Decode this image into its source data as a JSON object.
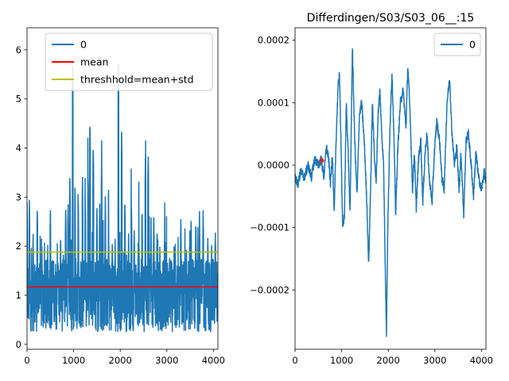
{
  "colors": {
    "series": "#1f77b4",
    "mean": "#ff0000",
    "threshold": "#bfbf00",
    "marker": "#d62728"
  },
  "chart_data": [
    {
      "type": "line",
      "title": "",
      "xlabel": "",
      "ylabel": "",
      "xlim": [
        0,
        4096
      ],
      "ylim": [
        -0.1,
        6.45
      ],
      "xticks": [
        0,
        1000,
        2000,
        3000,
        4000
      ],
      "yticks": [
        0,
        1,
        2,
        3,
        4,
        5,
        6
      ],
      "legend": {
        "placement": "upper-right",
        "entries": [
          "0",
          "mean",
          "threshhold=mean+std"
        ]
      },
      "series": [
        {
          "name": "0",
          "style": "noisy-line",
          "baseline": 1.0,
          "noise": 0.75,
          "peaks": [
            [
              0,
              2.95
            ],
            [
              50,
              3.05
            ],
            [
              130,
              2.4
            ],
            [
              220,
              2.95
            ],
            [
              320,
              2.1
            ],
            [
              500,
              2.8
            ],
            [
              550,
              1.75
            ],
            [
              660,
              1.85
            ],
            [
              720,
              2.3
            ],
            [
              780,
              2.1
            ],
            [
              830,
              2.95
            ],
            [
              880,
              3.0
            ],
            [
              920,
              3.5
            ],
            [
              980,
              5.75
            ],
            [
              1030,
              3.3
            ],
            [
              1100,
              2.95
            ],
            [
              1190,
              3.55
            ],
            [
              1250,
              3.05
            ],
            [
              1310,
              3.55
            ],
            [
              1350,
              4.7
            ],
            [
              1420,
              4.2
            ],
            [
              1500,
              2.9
            ],
            [
              1560,
              3.05
            ],
            [
              1600,
              3.8
            ],
            [
              1680,
              3.1
            ],
            [
              1750,
              2.5
            ],
            [
              1830,
              2.3
            ],
            [
              1890,
              2.2
            ],
            [
              1960,
              5.8
            ],
            [
              2030,
              4.45
            ],
            [
              2100,
              3.05
            ],
            [
              2180,
              2.35
            ],
            [
              2240,
              2.95
            ],
            [
              2300,
              2.5
            ],
            [
              2400,
              2.35
            ],
            [
              2470,
              2.8
            ],
            [
              2540,
              3.95
            ],
            [
              2600,
              4.0
            ],
            [
              2660,
              2.35
            ],
            [
              2720,
              2.75
            ],
            [
              2790,
              2.45
            ],
            [
              2850,
              2.1
            ],
            [
              2950,
              2.3
            ],
            [
              3060,
              1.85
            ],
            [
              3180,
              2.1
            ],
            [
              3300,
              2.75
            ],
            [
              3420,
              2.1
            ],
            [
              3520,
              2.65
            ],
            [
              3620,
              2.6
            ],
            [
              3700,
              2.8
            ],
            [
              3780,
              2.85
            ],
            [
              3880,
              2.3
            ],
            [
              3960,
              2.15
            ],
            [
              4040,
              2.45
            ]
          ]
        },
        {
          "name": "mean",
          "constant": 1.17
        },
        {
          "name": "threshhold=mean+std",
          "constant": 1.88
        }
      ]
    },
    {
      "type": "line",
      "title": "Differdingen/S03/S03_06__:15",
      "xlabel": "",
      "ylabel": "",
      "xlim": [
        0,
        4096
      ],
      "ylim": [
        -0.000295,
        0.00022
      ],
      "xticks": [
        0,
        1000,
        2000,
        3000,
        4000
      ],
      "yticks": [
        -0.0002,
        -0.0001,
        0.0,
        0.0001,
        0.0002
      ],
      "ytick_labels": [
        "−0.0002",
        "−0.0001",
        "0.0000",
        "0.0001",
        "0.0002"
      ],
      "legend": {
        "placement": "upper-right",
        "entries": [
          "0"
        ]
      },
      "series": [
        {
          "name": "0",
          "style": "waveform",
          "noise": 8e-06,
          "points": [
            [
              0,
              -2e-05
            ],
            [
              60,
              -3e-05
            ],
            [
              120,
              -1e-05
            ],
            [
              200,
              -2e-05
            ],
            [
              280,
              0.0
            ],
            [
              350,
              -2e-05
            ],
            [
              420,
              1e-05
            ],
            [
              500,
              0.0
            ],
            [
              560,
              1e-05
            ],
            [
              620,
              -2e-05
            ],
            [
              670,
              3e-05
            ],
            [
              720,
              1e-05
            ],
            [
              760,
              -3e-05
            ],
            [
              800,
              2e-05
            ],
            [
              840,
              -8e-05
            ],
            [
              880,
              4e-05
            ],
            [
              920,
              0.00012
            ],
            [
              950,
              0.00015
            ],
            [
              980,
              6e-05
            ],
            [
              1020,
              -0.0001
            ],
            [
              1060,
              -8e-05
            ],
            [
              1100,
              0.0001
            ],
            [
              1140,
              2e-05
            ],
            [
              1180,
              -8e-05
            ],
            [
              1230,
              0.00019
            ],
            [
              1280,
              4e-05
            ],
            [
              1330,
              -5e-05
            ],
            [
              1380,
              8e-05
            ],
            [
              1430,
              0.0001
            ],
            [
              1490,
              3e-05
            ],
            [
              1540,
              -6e-05
            ],
            [
              1580,
              -0.00016
            ],
            [
              1620,
              -4e-05
            ],
            [
              1660,
              0.0001
            ],
            [
              1700,
              2e-05
            ],
            [
              1740,
              -3e-05
            ],
            [
              1780,
              8e-05
            ],
            [
              1820,
              0.00012
            ],
            [
              1860,
              5e-05
            ],
            [
              1900,
              0.0
            ],
            [
              1940,
              -0.00018
            ],
            [
              1960,
              -0.00027
            ],
            [
              1990,
              -0.0001
            ],
            [
              2040,
              7e-05
            ],
            [
              2080,
              0.00015
            ],
            [
              2120,
              5e-05
            ],
            [
              2160,
              -8e-05
            ],
            [
              2200,
              2e-05
            ],
            [
              2260,
              0.0001
            ],
            [
              2320,
              0.00012
            ],
            [
              2380,
              6e-05
            ],
            [
              2420,
              0.00016
            ],
            [
              2470,
              8e-05
            ],
            [
              2520,
              -4e-05
            ],
            [
              2560,
              2e-05
            ],
            [
              2600,
              -7e-05
            ],
            [
              2650,
              1e-05
            ],
            [
              2700,
              4e-05
            ],
            [
              2740,
              -6e-05
            ],
            [
              2790,
              2e-05
            ],
            [
              2830,
              5e-05
            ],
            [
              2880,
              -2e-05
            ],
            [
              2940,
              -6e-05
            ],
            [
              2990,
              2e-05
            ],
            [
              3040,
              7e-05
            ],
            [
              3100,
              4e-05
            ],
            [
              3150,
              -2e-05
            ],
            [
              3200,
              -4e-05
            ],
            [
              3260,
              0.0001
            ],
            [
              3320,
              0.00014
            ],
            [
              3360,
              6e-05
            ],
            [
              3420,
              0.0
            ],
            [
              3470,
              3e-05
            ],
            [
              3520,
              -4e-05
            ],
            [
              3560,
              2e-05
            ],
            [
              3620,
              -8e-05
            ],
            [
              3670,
              4e-05
            ],
            [
              3720,
              5e-05
            ],
            [
              3780,
              0.0
            ],
            [
              3830,
              -5e-05
            ],
            [
              3880,
              2e-05
            ],
            [
              3940,
              -2e-05
            ],
            [
              4000,
              -4e-05
            ],
            [
              4060,
              -1e-05
            ],
            [
              4096,
              -3e-05
            ]
          ]
        }
      ],
      "markers": [
        {
          "x": 570,
          "y": 7.5e-06
        }
      ]
    }
  ]
}
